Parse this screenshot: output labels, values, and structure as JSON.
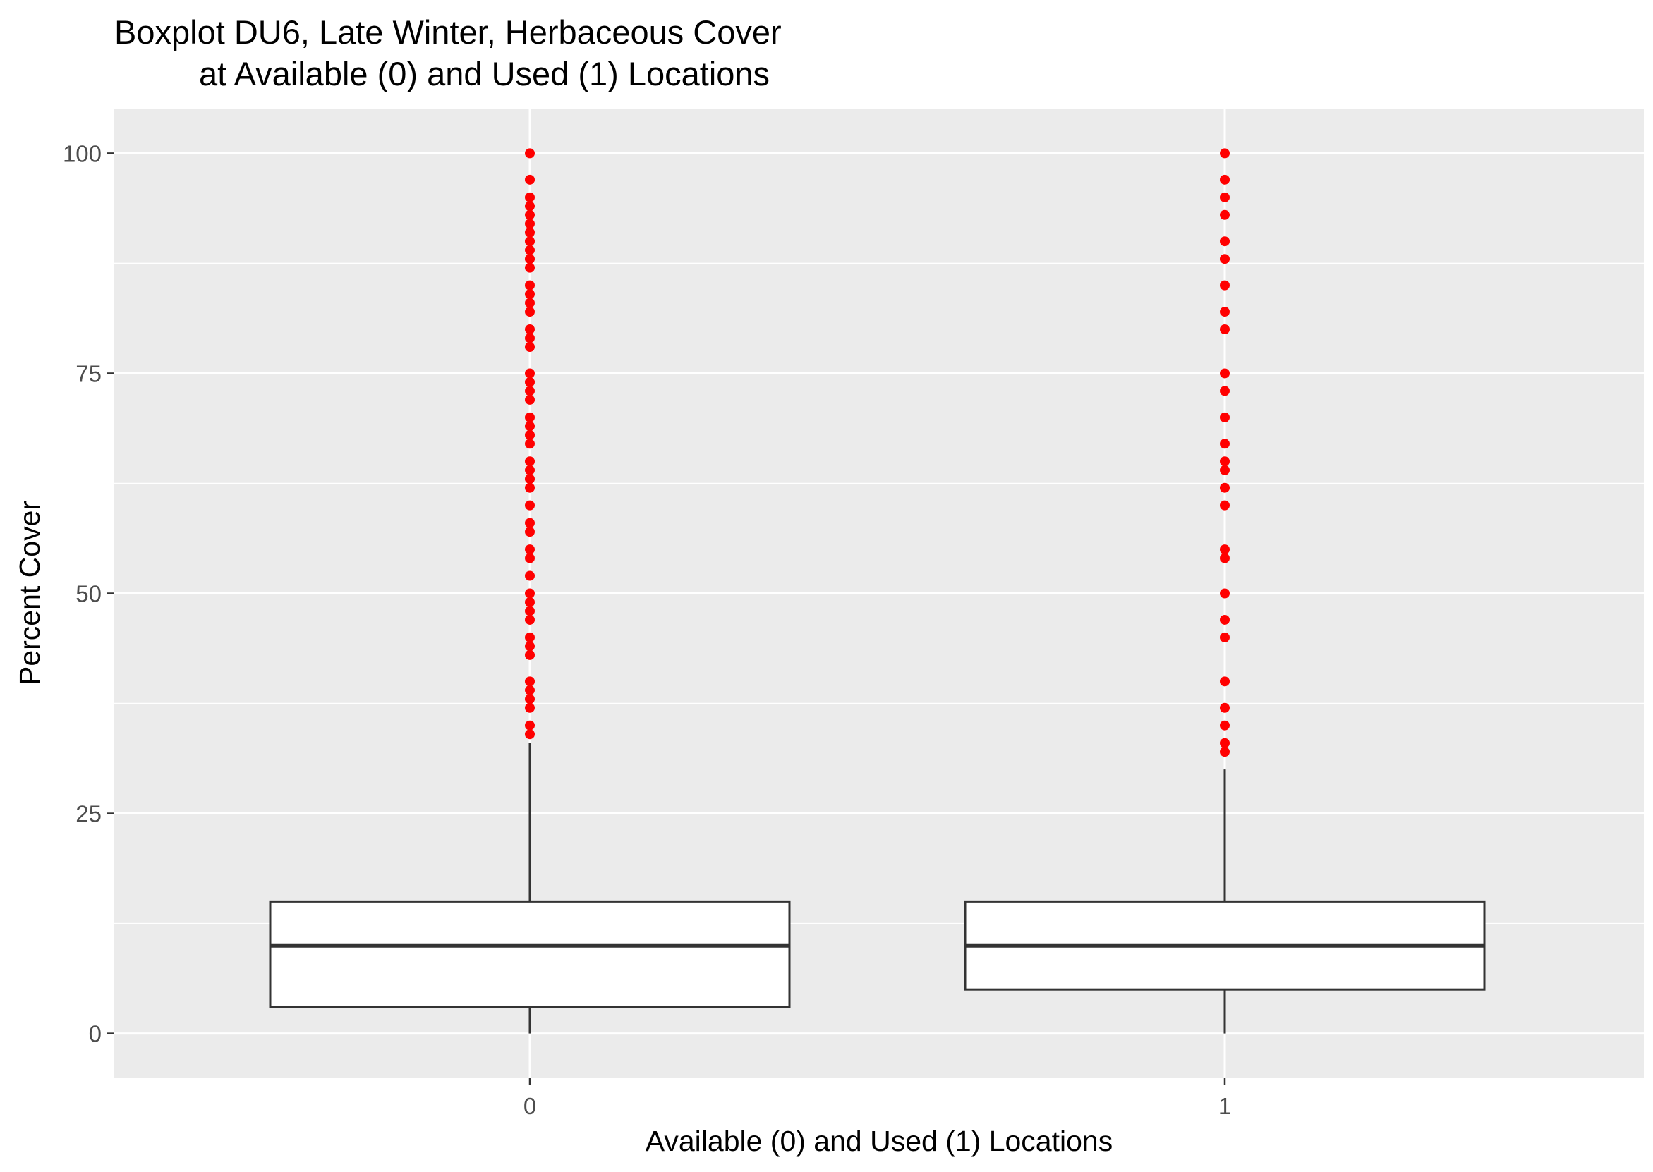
{
  "chart_data": {
    "type": "box",
    "title_lines": [
      "Boxplot DU6, Late Winter, Herbaceous Cover",
      "at Available (0) and Used (1) Locations"
    ],
    "xlabel": "Available (0) and Used (1) Locations",
    "ylabel": "Percent Cover",
    "ylim": [
      -5,
      105
    ],
    "yticks": [
      0,
      25,
      50,
      75,
      100
    ],
    "categories": [
      "0",
      "1"
    ],
    "grid": true,
    "panel_background": "#ebebeb",
    "outlier_color": "#ff0000",
    "boxes": [
      {
        "category": "0",
        "min": 0,
        "q1": 3,
        "median": 10,
        "q3": 15,
        "max": 33,
        "outliers": [
          34,
          35,
          37,
          38,
          39,
          40,
          43,
          44,
          45,
          47,
          48,
          49,
          50,
          52,
          54,
          55,
          57,
          58,
          60,
          62,
          63,
          64,
          65,
          67,
          68,
          69,
          70,
          72,
          73,
          74,
          75,
          78,
          79,
          80,
          82,
          83,
          84,
          85,
          87,
          88,
          89,
          90,
          91,
          92,
          93,
          94,
          95,
          97,
          100
        ]
      },
      {
        "category": "1",
        "min": 0,
        "q1": 5,
        "median": 10,
        "q3": 15,
        "max": 30,
        "outliers": [
          32,
          33,
          35,
          37,
          40,
          45,
          47,
          50,
          54,
          55,
          60,
          62,
          64,
          65,
          67,
          70,
          73,
          75,
          80,
          82,
          85,
          88,
          90,
          93,
          95,
          97,
          100
        ]
      }
    ]
  }
}
